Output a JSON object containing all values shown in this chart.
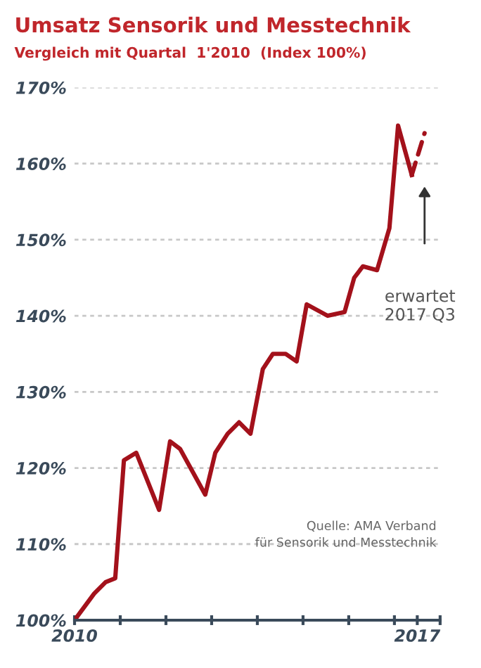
{
  "chart_data": {
    "type": "line",
    "title": "Umsatz Sensorik und Messtechnik",
    "subtitle": "Vergleich mit Quartal  1'2010  (Index 100%)",
    "series": [
      {
        "color": "#a3111b",
        "line_style": "solid",
        "x": [
          2010.0,
          2010.43,
          2010.68,
          2010.89,
          2011.08,
          2011.35,
          2011.85,
          2012.09,
          2012.31,
          2012.86,
          2013.08,
          2013.35,
          2013.6,
          2013.85,
          2014.12,
          2014.34,
          2014.62,
          2014.86,
          2015.08,
          2015.54,
          2015.91,
          2016.12,
          2016.31,
          2016.62,
          2016.89,
          2017.08,
          2017.38
        ],
        "values": [
          100,
          103.5,
          105,
          105.5,
          121,
          122,
          114.5,
          123.5,
          122.5,
          116.5,
          122,
          124.5,
          126,
          124.5,
          133,
          135,
          135,
          134,
          141.5,
          140,
          140.5,
          145,
          146.5,
          146,
          151.5,
          165,
          158.5
        ]
      },
      {
        "color": "#a3111b",
        "line_style": "dashed",
        "x": [
          2017.38,
          2017.66
        ],
        "values": [
          158.5,
          164
        ]
      }
    ],
    "xlim": [
      2010,
      2018
    ],
    "xticks": [
      {
        "value": 2010,
        "label": "2010"
      },
      {
        "value": 2011,
        "label": null
      },
      {
        "value": 2012,
        "label": null
      },
      {
        "value": 2013,
        "label": null
      },
      {
        "value": 2014,
        "label": null
      },
      {
        "value": 2015,
        "label": null
      },
      {
        "value": 2016,
        "label": null
      },
      {
        "value": 2017,
        "label": null
      },
      {
        "value": 2017.5,
        "label": "2017"
      },
      {
        "value": 2018,
        "label": null
      }
    ],
    "ylim": [
      100,
      170
    ],
    "yticks": [
      {
        "value": 100,
        "label": "100%"
      },
      {
        "value": 110,
        "label": "110%"
      },
      {
        "value": 120,
        "label": "120%"
      },
      {
        "value": 130,
        "label": "130%"
      },
      {
        "value": 140,
        "label": "140%"
      },
      {
        "value": 150,
        "label": "150%"
      },
      {
        "value": 160,
        "label": "160%"
      },
      {
        "value": 170,
        "label": "170%"
      }
    ],
    "grid": "y",
    "legend": false,
    "marker": "none",
    "annotations": [
      "erwartet\n2017 Q3",
      "Quelle: AMA Verband\nfür Sensorik und Messtechnik"
    ]
  }
}
